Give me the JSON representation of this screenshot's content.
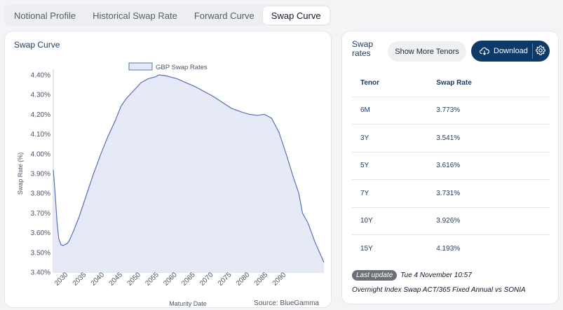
{
  "tabs": [
    {
      "label": "Notional Profile",
      "active": false
    },
    {
      "label": "Historical Swap Rate",
      "active": false
    },
    {
      "label": "Forward Curve",
      "active": false
    },
    {
      "label": "Swap Curve",
      "active": true
    }
  ],
  "chart_panel": {
    "title": "Swap Curve"
  },
  "chart_data": {
    "type": "area",
    "title": "",
    "legend": [
      "GBP Swap Rates"
    ],
    "legend_position": "top-center",
    "xlabel": "Maturity Date",
    "ylabel": "Swap Rate (%)",
    "source": "Source: BlueGamma",
    "xlim": [
      2025.9,
      2100.4
    ],
    "ylim": [
      3.4,
      4.4
    ],
    "x_ticks": [
      2030,
      2035,
      2040,
      2045,
      2050,
      2055,
      2060,
      2065,
      2070,
      2075,
      2080,
      2085,
      2090
    ],
    "x_tick_labels": [
      "2030",
      "2035",
      "2040",
      "2045",
      "2050",
      "2055",
      "2060",
      "2065",
      "2070",
      "2075",
      "2080",
      "2085",
      "2090"
    ],
    "y_ticks": [
      3.4,
      3.5,
      3.6,
      3.7,
      3.8,
      3.9,
      4.0,
      4.1,
      4.2,
      4.3,
      4.4
    ],
    "y_tick_labels": [
      "3.40%",
      "3.50%",
      "3.60%",
      "3.70%",
      "3.80%",
      "3.90%",
      "4.00%",
      "4.10%",
      "4.20%",
      "4.30%",
      "4.40%"
    ],
    "series": [
      {
        "name": "GBP Swap Rates",
        "color": "#5a72b5",
        "fill": "#e6e9f6",
        "x": [
          2025.9,
          2026.4,
          2026.9,
          2027.4,
          2028.0,
          2028.6,
          2029.1,
          2029.7,
          2030.3,
          2031.5,
          2033.0,
          2035.0,
          2037.0,
          2039.0,
          2041.0,
          2043.0,
          2044.5,
          2046.0,
          2048.0,
          2050.0,
          2052.0,
          2054.0,
          2055.0,
          2057.0,
          2060.0,
          2065.0,
          2070.0,
          2075.0,
          2078.0,
          2080.0,
          2082.0,
          2084.0,
          2086.0,
          2088.0,
          2090.0,
          2092.0,
          2093.5,
          2094.5,
          2096.0,
          2098.0,
          2100.4
        ],
        "y": [
          3.92,
          3.8,
          3.66,
          3.57,
          3.54,
          3.535,
          3.54,
          3.545,
          3.56,
          3.61,
          3.68,
          3.79,
          3.9,
          4.0,
          4.09,
          4.17,
          4.24,
          4.28,
          4.32,
          4.36,
          4.38,
          4.39,
          4.4,
          4.395,
          4.38,
          4.34,
          4.29,
          4.23,
          4.21,
          4.2,
          4.195,
          4.2,
          4.18,
          4.11,
          4.0,
          3.88,
          3.8,
          3.7,
          3.65,
          3.55,
          3.45
        ]
      }
    ]
  },
  "rates_panel": {
    "title": "Swap rates",
    "show_more_label": "Show More Tenors",
    "download_label": "Download",
    "columns": [
      "Tenor",
      "Swap Rate"
    ],
    "rows": [
      {
        "tenor": "6M",
        "rate": "3.773%"
      },
      {
        "tenor": "3Y",
        "rate": "3.541%"
      },
      {
        "tenor": "5Y",
        "rate": "3.616%"
      },
      {
        "tenor": "7Y",
        "rate": "3.731%"
      },
      {
        "tenor": "10Y",
        "rate": "3.926%"
      },
      {
        "tenor": "15Y",
        "rate": "4.193%"
      }
    ],
    "last_update_badge": "Last update",
    "last_update_value": "Tue 4 November 10:57",
    "description": "Overnight Index Swap ACT/365 Fixed Annual vs SONIA"
  }
}
